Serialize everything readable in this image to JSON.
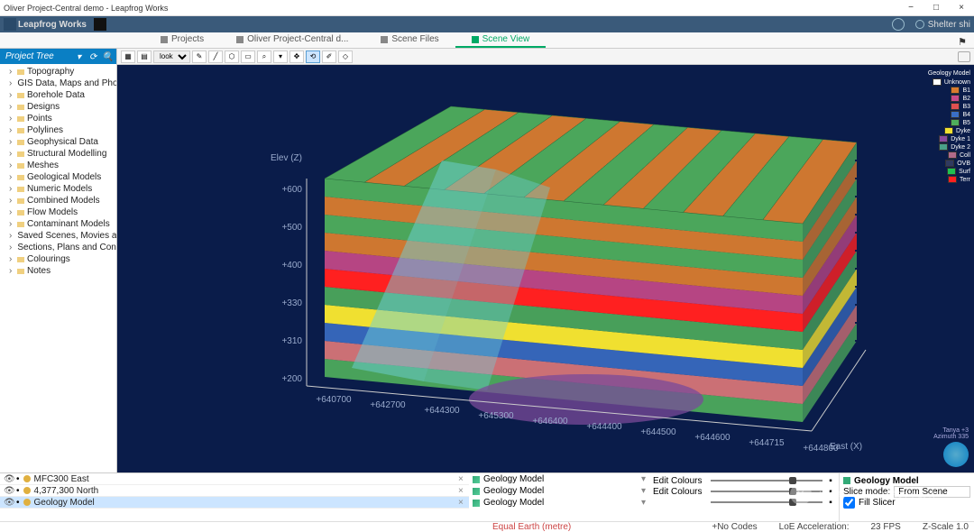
{
  "window": {
    "title": "Oliver Project-Central demo - Leapfrog Works",
    "min": "−",
    "max": "□",
    "close": "×"
  },
  "app": {
    "name": "Leapfrog Works",
    "user": "Shelter shi"
  },
  "tabs": {
    "items": [
      {
        "label": "Projects",
        "active": false
      },
      {
        "label": "Oliver Project-Central d...",
        "active": false
      },
      {
        "label": "Scene Files",
        "active": false
      },
      {
        "label": "Scene View",
        "active": true
      }
    ]
  },
  "sidebar": {
    "title": "Project Tree",
    "items": [
      "Topography",
      "GIS Data, Maps and Photos",
      "Borehole Data",
      "Designs",
      "Points",
      "Polylines",
      "Geophysical Data",
      "Structural Modelling",
      "Meshes",
      "Geological Models",
      "Numeric Models",
      "Combined Models",
      "Flow Models",
      "Contaminant Models",
      "Saved Scenes, Movies and Markers",
      "Sections, Plans and Contours",
      "Colourings",
      "Notes"
    ]
  },
  "toolbar": {
    "look": "look"
  },
  "legend": {
    "header": "Geology Model",
    "items": [
      {
        "label": "Unknown",
        "color": "#ffffff"
      },
      {
        "label": "B1",
        "color": "#d97c2e"
      },
      {
        "label": "B2",
        "color": "#c94a8a"
      },
      {
        "label": "B3",
        "color": "#e05050"
      },
      {
        "label": "B4",
        "color": "#3a6ec4"
      },
      {
        "label": "B5",
        "color": "#4fae5c"
      },
      {
        "label": "Dyke",
        "color": "#f0e030"
      },
      {
        "label": "Dyke 1",
        "color": "#8a4aa0"
      },
      {
        "label": "Dyke 2",
        "color": "#4aa08a"
      },
      {
        "label": "Coll",
        "color": "#b06a8a"
      },
      {
        "label": "OVB",
        "color": "#303a60"
      },
      {
        "label": "Surf",
        "color": "#20c050"
      },
      {
        "label": "Terr",
        "color": "#ff2020"
      }
    ]
  },
  "scene": {
    "bg": "#0a1c4a",
    "axis_z_label": "Elev (Z)",
    "axis_x_label": "East (X)",
    "z_ticks": [
      "+600",
      "+500",
      "+400",
      "+330",
      "+310",
      "+200"
    ],
    "x_ticks": [
      "+640700",
      "+642700",
      "+644300",
      "+645300",
      "+646400",
      "+644400",
      "+644500",
      "+644600",
      "+644715",
      "+644800"
    ],
    "credits": "Tanya +3\nAzimuth 335",
    "layers": [
      {
        "color": "#4fae5c",
        "op": 0.95
      },
      {
        "color": "#d97c2e",
        "op": 0.95
      },
      {
        "color": "#4fae5c",
        "op": 0.95
      },
      {
        "color": "#d97c2e",
        "op": 0.95
      },
      {
        "color": "#c94a8a",
        "op": 0.9
      },
      {
        "color": "#ff2020",
        "op": 1
      },
      {
        "color": "#4fae5c",
        "op": 0.9
      },
      {
        "color": "#f0e030",
        "op": 1
      },
      {
        "color": "#3a6ec4",
        "op": 0.9
      },
      {
        "color": "#e07a7a",
        "op": 0.9
      },
      {
        "color": "#4fae5c",
        "op": 0.92
      }
    ],
    "fault": "#6dd0d8"
  },
  "bottom": {
    "rows": [
      {
        "name": "MFC300 East",
        "model": "Geology Model",
        "edit": "Edit Colours",
        "sel": false
      },
      {
        "name": "4,377,300 North",
        "model": "Geology Model",
        "edit": "Edit Colours",
        "sel": false
      },
      {
        "name": "Geology Model",
        "model": "Geology Model",
        "edit": "",
        "sel": true
      }
    ],
    "props": {
      "title": "Geology Model",
      "slice_label": "Slice mode:",
      "slice_value": "From Scene",
      "fill_label": "Fill Slicer"
    }
  },
  "status": {
    "equal": "Equal Earth (metre)",
    "codes": "+No Codes",
    "accel": "LoE Acceleration:",
    "fps": "23 FPS",
    "zscale": "Z-Scale 1.0"
  }
}
